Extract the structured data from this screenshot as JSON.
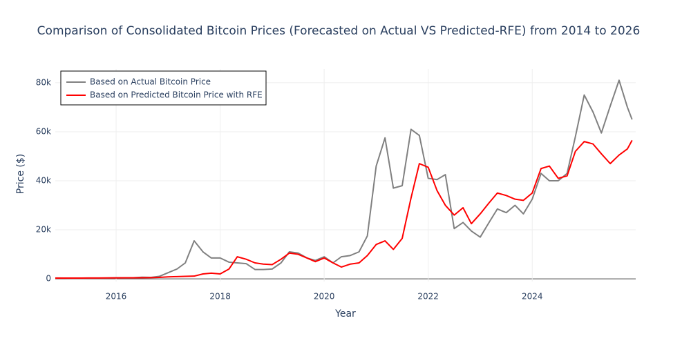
{
  "chart_data": {
    "type": "line",
    "title": "Comparison of Consolidated Bitcoin Prices (Forecasted on Actual VS Predicted-RFE) from 2014 to 2026",
    "x_label": "Year",
    "y_label": "Price ($)",
    "x": [
      2014.83,
      2015,
      2015.17,
      2015.33,
      2015.5,
      2015.67,
      2015.83,
      2016,
      2016.17,
      2016.33,
      2016.5,
      2016.67,
      2016.83,
      2017,
      2017.17,
      2017.33,
      2017.5,
      2017.67,
      2017.83,
      2018,
      2018.17,
      2018.33,
      2018.5,
      2018.67,
      2018.83,
      2019,
      2019.17,
      2019.33,
      2019.5,
      2019.67,
      2019.83,
      2020,
      2020.17,
      2020.33,
      2020.5,
      2020.67,
      2020.83,
      2021,
      2021.17,
      2021.33,
      2021.5,
      2021.67,
      2021.83,
      2022,
      2022.17,
      2022.33,
      2022.5,
      2022.67,
      2022.83,
      2023,
      2023.17,
      2023.33,
      2023.5,
      2023.67,
      2023.83,
      2024,
      2024.17,
      2024.33,
      2024.5,
      2024.67,
      2024.83,
      2025,
      2025.17,
      2025.33,
      2025.5,
      2025.67,
      2025.83,
      2025.92
    ],
    "series": [
      {
        "name": "Based on Actual Bitcoin Price",
        "color": "#808080",
        "values": [
          350,
          300,
          250,
          240,
          270,
          280,
          300,
          430,
          420,
          450,
          650,
          600,
          1000,
          2500,
          4000,
          6500,
          15500,
          11000,
          8500,
          8500,
          6800,
          6500,
          6200,
          3800,
          3800,
          4000,
          6500,
          11000,
          10500,
          8500,
          7500,
          9000,
          6500,
          9000,
          9500,
          11000,
          17500,
          46000,
          57500,
          37000,
          38000,
          61000,
          58500,
          41000,
          40500,
          42500,
          20500,
          23000,
          19500,
          17000,
          23000,
          28500,
          27000,
          30000,
          26500,
          32500,
          43000,
          40000,
          40000,
          43000,
          58000,
          75000,
          68000,
          59500,
          70500,
          81000,
          70000,
          65000
        ]
      },
      {
        "name": "Based on Predicted Bitcoin Price with RFE",
        "color": "#ff0000",
        "values": [
          300,
          300,
          300,
          320,
          350,
          350,
          360,
          380,
          400,
          420,
          450,
          500,
          600,
          800,
          900,
          1000,
          1100,
          2000,
          2300,
          2000,
          4000,
          9000,
          8000,
          6500,
          6000,
          5800,
          8000,
          10500,
          10000,
          8500,
          7000,
          8500,
          6500,
          4800,
          6000,
          6500,
          9500,
          14000,
          15500,
          12000,
          16500,
          33000,
          47000,
          45500,
          36000,
          30000,
          26000,
          29000,
          22500,
          26500,
          31000,
          35000,
          34000,
          32500,
          32000,
          35000,
          45000,
          46000,
          41000,
          42000,
          52000,
          56000,
          55000,
          51000,
          47000,
          50500,
          53000,
          56500
        ]
      }
    ],
    "xlim": [
      2014.83,
      2025.99
    ],
    "xticks": [
      2016,
      2018,
      2020,
      2022,
      2024
    ],
    "ylim": [
      -1100,
      85600
    ],
    "yticks": [
      0,
      {
        "value": 20000,
        "label": "20k"
      },
      {
        "value": 40000,
        "label": "40k"
      },
      {
        "value": 60000,
        "label": "60k"
      },
      {
        "value": 80000,
        "label": "80k"
      }
    ],
    "grid": true,
    "legend": "top-left"
  }
}
